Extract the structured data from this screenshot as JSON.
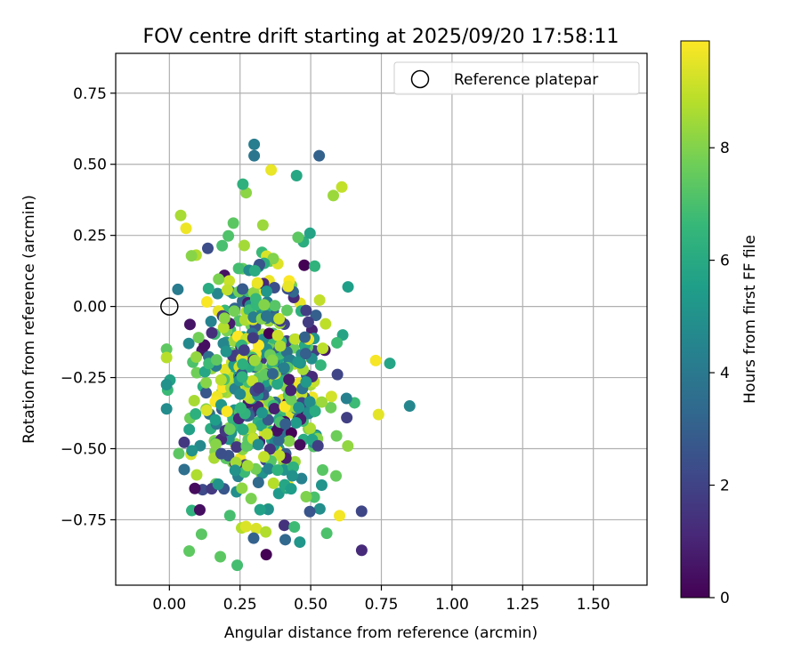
{
  "chart_data": {
    "type": "scatter",
    "title": "FOV centre drift starting at 2025/09/20 17:58:11",
    "xlabel": "Angular distance from reference (arcmin)",
    "ylabel": "Rotation from reference (arcmin)",
    "xlim": [
      -0.19,
      1.69
    ],
    "ylim": [
      -0.98,
      0.89
    ],
    "xticks": [
      "0.00",
      "0.25",
      "0.50",
      "0.75",
      "1.00",
      "1.25",
      "1.50"
    ],
    "yticks": [
      "−0.75",
      "−0.50",
      "−0.25",
      "0.00",
      "0.25",
      "0.50",
      "0.75"
    ],
    "grid": true,
    "legend": {
      "placement": "top-right",
      "entries": [
        "Reference platepar"
      ]
    },
    "reference_point": {
      "x": 0.0,
      "y": 0.0
    },
    "colorbar": {
      "label": "Hours from first FF file",
      "range": [
        0,
        9.9
      ],
      "ticks": [
        "0",
        "2",
        "4",
        "6",
        "8"
      ],
      "colormap": "viridis"
    },
    "notable_points": [
      {
        "x": 0.3,
        "y": 0.57,
        "hours": 4.2
      },
      {
        "x": 0.3,
        "y": 0.53,
        "hours": 3.9
      },
      {
        "x": 0.53,
        "y": 0.53,
        "hours": 3.1
      },
      {
        "x": 0.36,
        "y": 0.48,
        "hours": 9.6
      },
      {
        "x": 0.45,
        "y": 0.46,
        "hours": 5.9
      },
      {
        "x": 0.26,
        "y": 0.43,
        "hours": 6.3
      },
      {
        "x": 0.61,
        "y": 0.42,
        "hours": 9.0
      },
      {
        "x": 0.58,
        "y": 0.39,
        "hours": 8.4
      },
      {
        "x": 0.04,
        "y": 0.32,
        "hours": 8.6
      },
      {
        "x": 0.85,
        "y": -0.35,
        "hours": 4.6
      },
      {
        "x": 0.78,
        "y": -0.2,
        "hours": 5.8
      },
      {
        "x": 0.73,
        "y": -0.19,
        "hours": 9.8
      },
      {
        "x": 0.74,
        "y": -0.38,
        "hours": 9.5
      },
      {
        "x": 0.68,
        "y": -0.72,
        "hours": 2.1
      },
      {
        "x": 0.07,
        "y": -0.86,
        "hours": 7.4
      },
      {
        "x": 0.24,
        "y": -0.91,
        "hours": 6.9
      },
      {
        "x": 0.41,
        "y": -0.82,
        "hours": 3.3
      },
      {
        "x": 0.09,
        "y": -0.64,
        "hours": 0.3
      },
      {
        "x": -0.01,
        "y": -0.36,
        "hours": 4.8
      },
      {
        "x": 0.03,
        "y": 0.06,
        "hours": 4.1
      }
    ],
    "cluster": {
      "count": 520,
      "x_center": 0.33,
      "x_spread": 0.13,
      "y_center": -0.28,
      "y_spread": 0.23,
      "hours_range": [
        0,
        9.9
      ]
    }
  }
}
